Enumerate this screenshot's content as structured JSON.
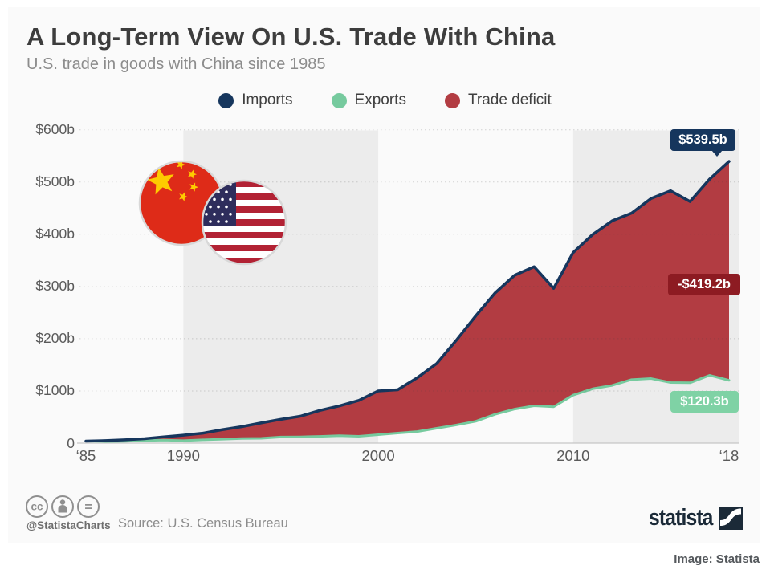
{
  "header": {
    "title": "A Long-Term View On U.S. Trade With China",
    "subtitle": "U.S. trade in goods with China since 1985"
  },
  "legend": {
    "items": [
      {
        "label": "Imports",
        "color": "#16365d"
      },
      {
        "label": "Exports",
        "color": "#76ca9e"
      },
      {
        "label": "Trade deficit",
        "color": "#b23c42"
      }
    ]
  },
  "chart_data": {
    "type": "area",
    "title": "A Long-Term View On U.S. Trade With China",
    "subtitle": "U.S. trade in goods with China since 1985",
    "x": [
      1985,
      1986,
      1987,
      1988,
      1989,
      1990,
      1991,
      1992,
      1993,
      1994,
      1995,
      1996,
      1997,
      1998,
      1999,
      2000,
      2001,
      2002,
      2003,
      2004,
      2005,
      2006,
      2007,
      2008,
      2009,
      2010,
      2011,
      2012,
      2013,
      2014,
      2015,
      2016,
      2017,
      2018
    ],
    "series": [
      {
        "name": "Imports",
        "color": "#16365d",
        "values": [
          3.9,
          4.8,
          6.3,
          8.5,
          12.0,
          15.2,
          19.0,
          25.7,
          31.5,
          38.8,
          45.6,
          51.5,
          62.6,
          71.2,
          81.8,
          100.0,
          102.3,
          125.2,
          152.4,
          196.7,
          243.5,
          287.8,
          321.5,
          337.8,
          296.4,
          364.9,
          399.4,
          425.6,
          440.4,
          468.5,
          483.2,
          462.6,
          505.5,
          539.5
        ]
      },
      {
        "name": "Exports",
        "color": "#76ca9e",
        "values": [
          3.9,
          3.1,
          3.5,
          5.0,
          5.8,
          4.8,
          6.3,
          7.4,
          8.8,
          9.3,
          11.7,
          12.0,
          12.8,
          14.3,
          13.1,
          16.2,
          19.2,
          22.1,
          28.4,
          34.7,
          41.8,
          55.2,
          65.2,
          71.5,
          69.6,
          91.9,
          104.1,
          110.5,
          121.7,
          123.7,
          116.1,
          115.6,
          129.9,
          120.3
        ]
      }
    ],
    "deficit_fill_color": "#b23c42",
    "ylim": [
      0,
      600
    ],
    "grid": true,
    "legend_position": "top",
    "y_ticks": [
      {
        "label": "$600b",
        "value": 600
      },
      {
        "label": "$500b",
        "value": 500
      },
      {
        "label": "$400b",
        "value": 400
      },
      {
        "label": "$300b",
        "value": 300
      },
      {
        "label": "$200b",
        "value": 200
      },
      {
        "label": "$100b",
        "value": 100
      },
      {
        "label": "0",
        "value": 0
      }
    ],
    "x_ticks": [
      {
        "label": "‘85",
        "year": 1985
      },
      {
        "label": "1990",
        "year": 1990
      },
      {
        "label": "2000",
        "year": 2000
      },
      {
        "label": "2010",
        "year": 2010
      },
      {
        "label": "‘18",
        "year": 2018
      }
    ],
    "bands": [
      {
        "from": 1990,
        "to": 2000
      },
      {
        "from": 2010,
        "to": 2018.5
      }
    ],
    "annotations": [
      {
        "label": "$539.5b",
        "series": "Imports",
        "color": "#16365d"
      },
      {
        "label": "-$419.2b",
        "series": "Trade deficit",
        "color": "#8d1b22"
      },
      {
        "label": "$120.3b",
        "series": "Exports",
        "color": "#7fd2a5"
      }
    ]
  },
  "footer": {
    "handle": "@StatistaCharts",
    "source": "Source: U.S. Census Bureau",
    "logo_text": "statista"
  },
  "caption": {
    "attribution": "Image: Statista"
  }
}
